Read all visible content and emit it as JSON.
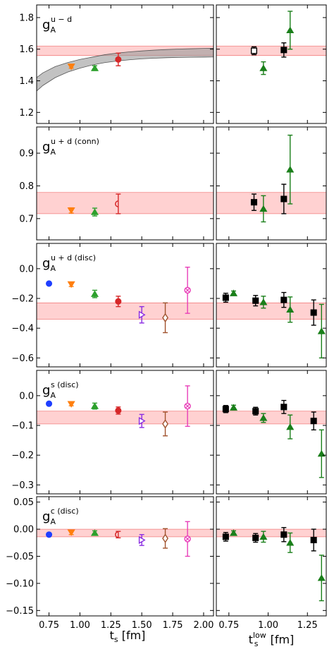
{
  "figure": {
    "left_xlabel_main": "t",
    "left_xlabel_sub": "s",
    "left_xlabel_unit": " [fm]",
    "right_xlabel_main": "t",
    "right_xlabel_sub": "s",
    "right_xlabel_sup": "low",
    "right_xlabel_unit": " [fm]",
    "left_xticks": [
      "0.75",
      "1.00",
      "1.25",
      "1.50",
      "1.75",
      "2.00"
    ],
    "right_xticks": [
      "0.75",
      "1.00",
      "1.25"
    ]
  },
  "chart_data": [
    {
      "type": "scatter",
      "row": 0,
      "label_main": "g",
      "label_sub": "A",
      "label_sup": "u − d",
      "ylim": [
        1.13,
        1.88
      ],
      "yticks": [
        "1.2",
        "1.4",
        "1.6",
        "1.8"
      ],
      "ytick_values": [
        1.2,
        1.4,
        1.6,
        1.8
      ],
      "band": [
        1.56,
        1.62
      ],
      "left_curve": {
        "x": [
          0.6,
          0.7,
          0.8,
          0.9,
          1.0,
          1.1,
          1.2,
          1.3,
          1.4,
          1.5,
          1.6,
          1.7,
          1.8,
          1.9,
          2.0,
          2.1
        ],
        "lower": [
          1.3,
          1.37,
          1.42,
          1.455,
          1.48,
          1.5,
          1.515,
          1.525,
          1.533,
          1.539,
          1.543,
          1.546,
          1.548,
          1.549,
          1.55,
          1.551
        ],
        "upper": [
          1.39,
          1.45,
          1.49,
          1.515,
          1.535,
          1.55,
          1.565,
          1.575,
          1.583,
          1.589,
          1.594,
          1.598,
          1.601,
          1.603,
          1.605,
          1.606
        ]
      },
      "left": [
        {
          "x": 0.93,
          "y": 1.49,
          "err": 0.01,
          "marker": "tri_down",
          "color": "#ff7f0e",
          "open": false
        },
        {
          "x": 1.12,
          "y": 1.48,
          "err": 0.015,
          "marker": "tri_up",
          "color": "#2ca02c",
          "open": false
        },
        {
          "x": 1.31,
          "y": 1.535,
          "err": 0.04,
          "marker": "circle_half",
          "color": "#d62728",
          "open": false
        }
      ],
      "right": [
        {
          "x": 0.91,
          "y": 1.59,
          "err": 0.025,
          "marker": "square",
          "color": "#000000",
          "open": true
        },
        {
          "x": 0.97,
          "y": 1.48,
          "err": 0.04,
          "marker": "tri_up",
          "color": "#1a7f1a",
          "open": false
        },
        {
          "x": 1.1,
          "y": 1.595,
          "err": 0.045,
          "marker": "square",
          "color": "#000000",
          "open": false
        },
        {
          "x": 1.14,
          "y": 1.72,
          "err": 0.12,
          "marker": "tri_up",
          "color": "#1a7f1a",
          "open": false
        }
      ]
    },
    {
      "type": "scatter",
      "row": 1,
      "label_main": "g",
      "label_sub": "A",
      "label_sup": "u + d (conn)",
      "ylim": [
        0.635,
        0.98
      ],
      "yticks": [
        "0.7",
        "0.8",
        "0.9"
      ],
      "ytick_values": [
        0.7,
        0.8,
        0.9
      ],
      "band": [
        0.715,
        0.78
      ],
      "left": [
        {
          "x": 0.93,
          "y": 0.725,
          "err": 0.008,
          "marker": "tri_down",
          "color": "#ff7f0e",
          "open": false
        },
        {
          "x": 1.12,
          "y": 0.72,
          "err": 0.012,
          "marker": "tri_up",
          "color": "#2ca02c",
          "open": false
        },
        {
          "x": 1.31,
          "y": 0.745,
          "err": 0.03,
          "marker": "circle_half",
          "color": "#d62728",
          "open": true
        }
      ],
      "right": [
        {
          "x": 0.91,
          "y": 0.75,
          "err": 0.025,
          "marker": "square",
          "color": "#000000",
          "open": false
        },
        {
          "x": 0.97,
          "y": 0.73,
          "err": 0.04,
          "marker": "tri_up",
          "color": "#1a7f1a",
          "open": false
        },
        {
          "x": 1.1,
          "y": 0.76,
          "err": 0.045,
          "marker": "square",
          "color": "#000000",
          "open": false
        },
        {
          "x": 1.14,
          "y": 0.85,
          "err": 0.105,
          "marker": "tri_up",
          "color": "#1a7f1a",
          "open": false
        }
      ]
    },
    {
      "type": "scatter",
      "row": 2,
      "label_main": "g",
      "label_sub": "A",
      "label_sup": "u + d (disc)",
      "ylim": [
        -0.66,
        0.17
      ],
      "yticks": [
        "0.0",
        "−0.2",
        "−0.4",
        "−0.6"
      ],
      "ytick_values": [
        0.0,
        -0.2,
        -0.4,
        -0.6
      ],
      "band": [
        -0.34,
        -0.23
      ],
      "left": [
        {
          "x": 0.75,
          "y": -0.1,
          "err": 0.0,
          "marker": "circle",
          "color": "#1f3fff",
          "open": false
        },
        {
          "x": 0.93,
          "y": -0.105,
          "err": 0.015,
          "marker": "tri_down",
          "color": "#ff7f0e",
          "open": false
        },
        {
          "x": 1.12,
          "y": -0.17,
          "err": 0.025,
          "marker": "tri_up",
          "color": "#2ca02c",
          "open": false
        },
        {
          "x": 1.31,
          "y": -0.22,
          "err": 0.035,
          "marker": "circle_half",
          "color": "#d62728",
          "open": false
        },
        {
          "x": 1.5,
          "y": -0.31,
          "err": 0.055,
          "marker": "tri_right",
          "color": "#8a2be2",
          "open": true
        },
        {
          "x": 1.69,
          "y": -0.33,
          "err": 0.1,
          "marker": "diamond",
          "color": "#a0522d",
          "open": true
        },
        {
          "x": 1.87,
          "y": -0.145,
          "err": 0.155,
          "marker": "plus_circle",
          "color": "#e83eb8",
          "open": true
        }
      ],
      "right": [
        {
          "x": 0.73,
          "y": -0.195,
          "err": 0.03,
          "marker": "square",
          "color": "#000000",
          "open": false
        },
        {
          "x": 0.78,
          "y": -0.165,
          "err": 0.015,
          "marker": "tri_up",
          "color": "#1a7f1a",
          "open": false
        },
        {
          "x": 0.92,
          "y": -0.215,
          "err": 0.035,
          "marker": "square",
          "color": "#000000",
          "open": false
        },
        {
          "x": 0.97,
          "y": -0.225,
          "err": 0.04,
          "marker": "tri_up",
          "color": "#1a7f1a",
          "open": false
        },
        {
          "x": 1.1,
          "y": -0.21,
          "err": 0.05,
          "marker": "square",
          "color": "#000000",
          "open": false
        },
        {
          "x": 1.14,
          "y": -0.275,
          "err": 0.085,
          "marker": "tri_up",
          "color": "#1a7f1a",
          "open": false
        },
        {
          "x": 1.29,
          "y": -0.295,
          "err": 0.085,
          "marker": "square",
          "color": "#000000",
          "open": false
        },
        {
          "x": 1.34,
          "y": -0.42,
          "err": 0.18,
          "marker": "tri_up",
          "color": "#1a7f1a",
          "open": false
        }
      ]
    },
    {
      "type": "scatter",
      "row": 3,
      "label_main": "g",
      "label_sub": "A",
      "label_sup": "s (disc)",
      "ylim": [
        -0.33,
        0.085
      ],
      "yticks": [
        "0.0",
        "−0.1",
        "−0.2",
        "−0.3"
      ],
      "ytick_values": [
        0.0,
        -0.1,
        -0.2,
        -0.3
      ],
      "band": [
        -0.095,
        -0.052
      ],
      "left": [
        {
          "x": 0.75,
          "y": -0.027,
          "err": 0.0,
          "marker": "circle",
          "color": "#1f3fff",
          "open": false
        },
        {
          "x": 0.93,
          "y": -0.028,
          "err": 0.006,
          "marker": "tri_down",
          "color": "#ff7f0e",
          "open": false
        },
        {
          "x": 1.12,
          "y": -0.035,
          "err": 0.01,
          "marker": "tri_up",
          "color": "#2ca02c",
          "open": false
        },
        {
          "x": 1.31,
          "y": -0.05,
          "err": 0.012,
          "marker": "circle_half",
          "color": "#d62728",
          "open": false
        },
        {
          "x": 1.5,
          "y": -0.085,
          "err": 0.022,
          "marker": "tri_right",
          "color": "#8a2be2",
          "open": true
        },
        {
          "x": 1.69,
          "y": -0.095,
          "err": 0.04,
          "marker": "diamond",
          "color": "#a0522d",
          "open": true
        },
        {
          "x": 1.87,
          "y": -0.035,
          "err": 0.068,
          "marker": "plus_circle",
          "color": "#e83eb8",
          "open": true
        }
      ],
      "right": [
        {
          "x": 0.73,
          "y": -0.045,
          "err": 0.012,
          "marker": "square",
          "color": "#000000",
          "open": false
        },
        {
          "x": 0.78,
          "y": -0.04,
          "err": 0.008,
          "marker": "tri_up",
          "color": "#1a7f1a",
          "open": false
        },
        {
          "x": 0.92,
          "y": -0.052,
          "err": 0.013,
          "marker": "square",
          "color": "#000000",
          "open": false
        },
        {
          "x": 0.97,
          "y": -0.075,
          "err": 0.015,
          "marker": "tri_up",
          "color": "#1a7f1a",
          "open": false
        },
        {
          "x": 1.1,
          "y": -0.038,
          "err": 0.022,
          "marker": "square",
          "color": "#000000",
          "open": false
        },
        {
          "x": 1.14,
          "y": -0.105,
          "err": 0.04,
          "marker": "tri_up",
          "color": "#1a7f1a",
          "open": false
        },
        {
          "x": 1.29,
          "y": -0.085,
          "err": 0.03,
          "marker": "square",
          "color": "#000000",
          "open": false
        },
        {
          "x": 1.34,
          "y": -0.195,
          "err": 0.08,
          "marker": "tri_up",
          "color": "#1a7f1a",
          "open": false
        }
      ]
    },
    {
      "type": "scatter",
      "row": 4,
      "label_main": "g",
      "label_sub": "A",
      "label_sup": "c (disc)",
      "ylim": [
        -0.16,
        0.06
      ],
      "yticks": [
        "0.05",
        "0.00",
        "−0.05",
        "−0.10",
        "−0.15"
      ],
      "ytick_values": [
        0.05,
        0.0,
        -0.05,
        -0.1,
        -0.15
      ],
      "band": [
        -0.014,
        0.0
      ],
      "left": [
        {
          "x": 0.75,
          "y": -0.01,
          "err": 0.0,
          "marker": "circle",
          "color": "#1f3fff",
          "open": false
        },
        {
          "x": 0.93,
          "y": -0.006,
          "err": 0.004,
          "marker": "tri_down",
          "color": "#ff7f0e",
          "open": false
        },
        {
          "x": 1.12,
          "y": -0.007,
          "err": 0.004,
          "marker": "tri_up",
          "color": "#2ca02c",
          "open": false
        },
        {
          "x": 1.31,
          "y": -0.01,
          "err": 0.006,
          "marker": "circle_half",
          "color": "#d62728",
          "open": true
        },
        {
          "x": 1.5,
          "y": -0.02,
          "err": 0.01,
          "marker": "tri_right",
          "color": "#8a2be2",
          "open": true
        },
        {
          "x": 1.69,
          "y": -0.017,
          "err": 0.018,
          "marker": "diamond",
          "color": "#a0522d",
          "open": true
        },
        {
          "x": 1.87,
          "y": -0.018,
          "err": 0.032,
          "marker": "plus_circle",
          "color": "#e83eb8",
          "open": true
        }
      ],
      "right": [
        {
          "x": 0.73,
          "y": -0.014,
          "err": 0.008,
          "marker": "square",
          "color": "#000000",
          "open": false
        },
        {
          "x": 0.78,
          "y": -0.007,
          "err": 0.004,
          "marker": "tri_up",
          "color": "#1a7f1a",
          "open": false
        },
        {
          "x": 0.92,
          "y": -0.016,
          "err": 0.008,
          "marker": "square",
          "color": "#000000",
          "open": false
        },
        {
          "x": 0.97,
          "y": -0.014,
          "err": 0.01,
          "marker": "tri_up",
          "color": "#1a7f1a",
          "open": false
        },
        {
          "x": 1.1,
          "y": -0.01,
          "err": 0.013,
          "marker": "square",
          "color": "#000000",
          "open": false
        },
        {
          "x": 1.14,
          "y": -0.025,
          "err": 0.018,
          "marker": "tri_up",
          "color": "#1a7f1a",
          "open": false
        },
        {
          "x": 1.29,
          "y": -0.02,
          "err": 0.02,
          "marker": "square",
          "color": "#000000",
          "open": false
        },
        {
          "x": 1.34,
          "y": -0.09,
          "err": 0.042,
          "marker": "tri_up",
          "color": "#1a7f1a",
          "open": false
        }
      ]
    }
  ]
}
